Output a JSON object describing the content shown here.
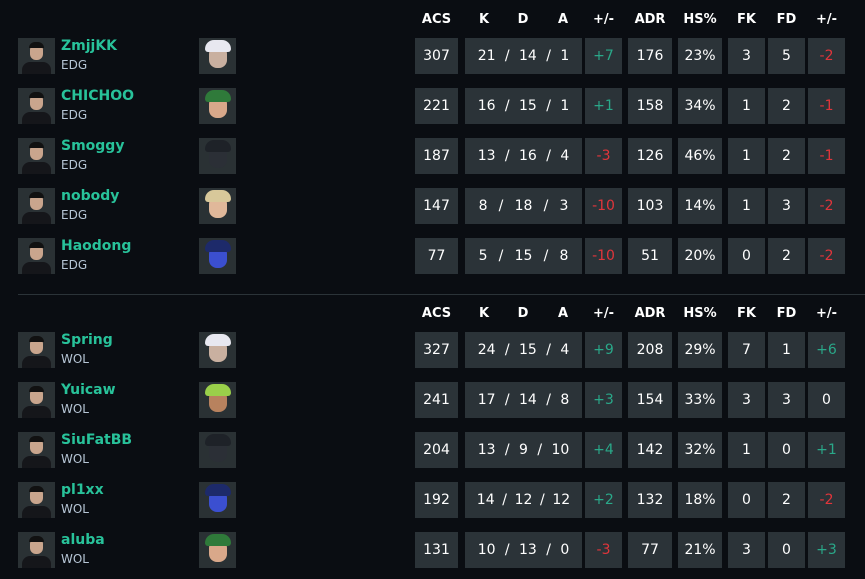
{
  "headers": [
    "ACS",
    "K",
    "D",
    "A",
    "+/-",
    "ADR",
    "HS%",
    "FK",
    "FD",
    "+/-"
  ],
  "colors": {
    "name": "#28c29a",
    "positive": "#2aa889",
    "negative": "#e0353b",
    "cell": "#2b3338",
    "background": "#0a0d12"
  },
  "teams": [
    {
      "players": [
        {
          "name": "ZmjjKK",
          "team": "EDG",
          "agent": "agent-jett-icon",
          "acs": "307",
          "k": "21",
          "d": "14",
          "a": "1",
          "pm": "+7",
          "adr": "176",
          "hs": "23%",
          "fk": "3",
          "fd": "5",
          "fpm": "-2"
        },
        {
          "name": "CHICHOO",
          "team": "EDG",
          "agent": "agent-killjoy-icon",
          "acs": "221",
          "k": "16",
          "d": "15",
          "a": "1",
          "pm": "+1",
          "adr": "158",
          "hs": "34%",
          "fk": "1",
          "fd": "2",
          "fpm": "-1"
        },
        {
          "name": "Smoggy",
          "team": "EDG",
          "agent": "agent-viper-icon",
          "acs": "187",
          "k": "13",
          "d": "16",
          "a": "4",
          "pm": "-3",
          "adr": "126",
          "hs": "46%",
          "fk": "1",
          "fd": "2",
          "fpm": "-1"
        },
        {
          "name": "nobody",
          "team": "EDG",
          "agent": "agent-sova-icon",
          "acs": "147",
          "k": "8",
          "d": "18",
          "a": "3",
          "pm": "-10",
          "adr": "103",
          "hs": "14%",
          "fk": "1",
          "fd": "3",
          "fpm": "-2"
        },
        {
          "name": "Haodong",
          "team": "EDG",
          "agent": "agent-omen-icon",
          "acs": "77",
          "k": "5",
          "d": "15",
          "a": "8",
          "pm": "-10",
          "adr": "51",
          "hs": "20%",
          "fk": "0",
          "fd": "2",
          "fpm": "-2"
        }
      ]
    },
    {
      "players": [
        {
          "name": "Spring",
          "team": "WOL",
          "agent": "agent-jett-icon",
          "acs": "327",
          "k": "24",
          "d": "15",
          "a": "4",
          "pm": "+9",
          "adr": "208",
          "hs": "29%",
          "fk": "7",
          "fd": "1",
          "fpm": "+6"
        },
        {
          "name": "Yuicaw",
          "team": "WOL",
          "agent": "agent-raze-icon",
          "acs": "241",
          "k": "17",
          "d": "14",
          "a": "8",
          "pm": "+3",
          "adr": "154",
          "hs": "33%",
          "fk": "3",
          "fd": "3",
          "fpm": "0"
        },
        {
          "name": "SiuFatBB",
          "team": "WOL",
          "agent": "agent-viper-icon",
          "acs": "204",
          "k": "13",
          "d": "9",
          "a": "10",
          "pm": "+4",
          "adr": "142",
          "hs": "32%",
          "fk": "1",
          "fd": "0",
          "fpm": "+1"
        },
        {
          "name": "pl1xx",
          "team": "WOL",
          "agent": "agent-omen-icon",
          "acs": "192",
          "k": "14",
          "d": "12",
          "a": "12",
          "pm": "+2",
          "adr": "132",
          "hs": "18%",
          "fk": "0",
          "fd": "2",
          "fpm": "-2"
        },
        {
          "name": "aluba",
          "team": "WOL",
          "agent": "agent-killjoy-icon",
          "acs": "131",
          "k": "10",
          "d": "13",
          "a": "0",
          "pm": "-3",
          "adr": "77",
          "hs": "21%",
          "fk": "3",
          "fd": "0",
          "fpm": "+3"
        }
      ]
    }
  ]
}
